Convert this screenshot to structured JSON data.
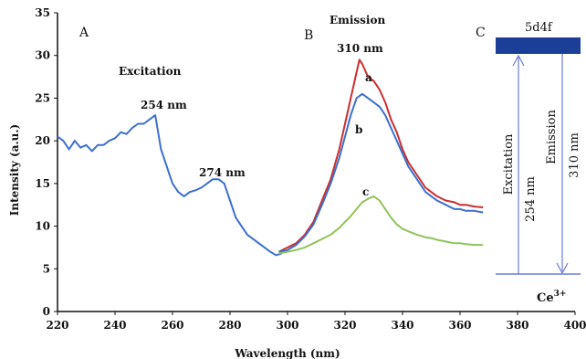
{
  "chart_data": {
    "type": "line",
    "xlabel": "Wavelength (nm)",
    "ylabel": "Intensity (a.u.)",
    "xlim": [
      220,
      400
    ],
    "ylim": [
      0,
      35
    ],
    "x_ticks": [
      220,
      240,
      260,
      280,
      300,
      320,
      340,
      360,
      380,
      400
    ],
    "y_ticks": [
      0,
      5,
      10,
      15,
      20,
      25,
      30,
      35
    ],
    "grid": false,
    "panel_labels": [
      "A",
      "B",
      "C"
    ],
    "annotations": {
      "excitation_title": "Excitation",
      "peak_254": "254 nm",
      "peak_274": "274 nm",
      "emission_title": "Emission",
      "peak_310": "310 nm",
      "label_a": "a",
      "label_b": "b",
      "label_c": "c"
    },
    "series": [
      {
        "color": "#3b6fce",
        "x": [
          220,
          222,
          224,
          226,
          228,
          230,
          232,
          234,
          236,
          238,
          240,
          242,
          244,
          246,
          248,
          250,
          252,
          254,
          256,
          258,
          260,
          262,
          264,
          266,
          268,
          270,
          272,
          274,
          276,
          278,
          280,
          282,
          284,
          286,
          288,
          290,
          292,
          294,
          296,
          298
        ],
        "values": [
          20.5,
          20,
          19,
          20,
          19.2,
          19.5,
          18.8,
          19.5,
          19.5,
          20,
          20.3,
          21,
          20.8,
          21.5,
          22,
          22,
          22.5,
          23,
          19,
          17,
          15,
          14,
          13.5,
          14,
          14.2,
          14.5,
          15,
          15.5,
          15.5,
          15,
          13,
          11,
          10,
          9,
          8.5,
          8,
          7.5,
          7,
          6.6,
          6.8
        ]
      },
      {
        "color": "#cc2e2e",
        "x": [
          297,
          300,
          303,
          306,
          309,
          312,
          315,
          318,
          320,
          322,
          324,
          325,
          326,
          328,
          330,
          332,
          334,
          336,
          338,
          340,
          342,
          345,
          348,
          350,
          352,
          355,
          358,
          360,
          362,
          365,
          368
        ],
        "values": [
          7,
          7.5,
          8,
          9,
          10.5,
          13,
          15.5,
          19,
          22,
          25,
          28,
          29.5,
          29,
          27.5,
          27,
          26,
          24.5,
          22.5,
          21,
          19,
          17.5,
          16,
          14.5,
          14,
          13.5,
          13,
          12.8,
          12.5,
          12.5,
          12.3,
          12.2
        ]
      },
      {
        "color": "#3b6fce",
        "x": [
          297,
          300,
          303,
          306,
          309,
          312,
          315,
          318,
          320,
          322,
          324,
          326,
          328,
          330,
          332,
          334,
          336,
          338,
          340,
          342,
          345,
          348,
          350,
          352,
          355,
          358,
          360,
          362,
          365,
          368
        ],
        "values": [
          7,
          7.2,
          7.8,
          8.8,
          10.2,
          12.5,
          15,
          18,
          20.5,
          23,
          25,
          25.5,
          25,
          24.5,
          24,
          23,
          21.5,
          20,
          18.5,
          17,
          15.5,
          14,
          13.5,
          13,
          12.5,
          12,
          12,
          11.8,
          11.8,
          11.6
        ]
      },
      {
        "color": "#8fc35a",
        "x": [
          297,
          300,
          303,
          306,
          309,
          312,
          315,
          318,
          320,
          322,
          324,
          326,
          328,
          330,
          332,
          334,
          336,
          338,
          340,
          342,
          345,
          348,
          350,
          352,
          355,
          358,
          360,
          362,
          365,
          368
        ],
        "values": [
          6.8,
          7,
          7.2,
          7.5,
          8,
          8.5,
          9,
          9.8,
          10.5,
          11.2,
          12,
          12.8,
          13.2,
          13.5,
          13,
          12,
          11,
          10.2,
          9.7,
          9.4,
          9,
          8.7,
          8.6,
          8.4,
          8.2,
          8,
          8,
          7.9,
          7.8,
          7.8
        ]
      }
    ]
  },
  "energy_diagram": {
    "level_label": "5d4f",
    "ground_label": "Ce",
    "ground_superscript": "3+",
    "excitation_label": "Excitation",
    "excitation_wavelength": "254 nm",
    "emission_label": "Emission",
    "emission_wavelength": "310 nm",
    "level_color": "#1b3f96",
    "arrow_color": "#6b7bd8"
  }
}
